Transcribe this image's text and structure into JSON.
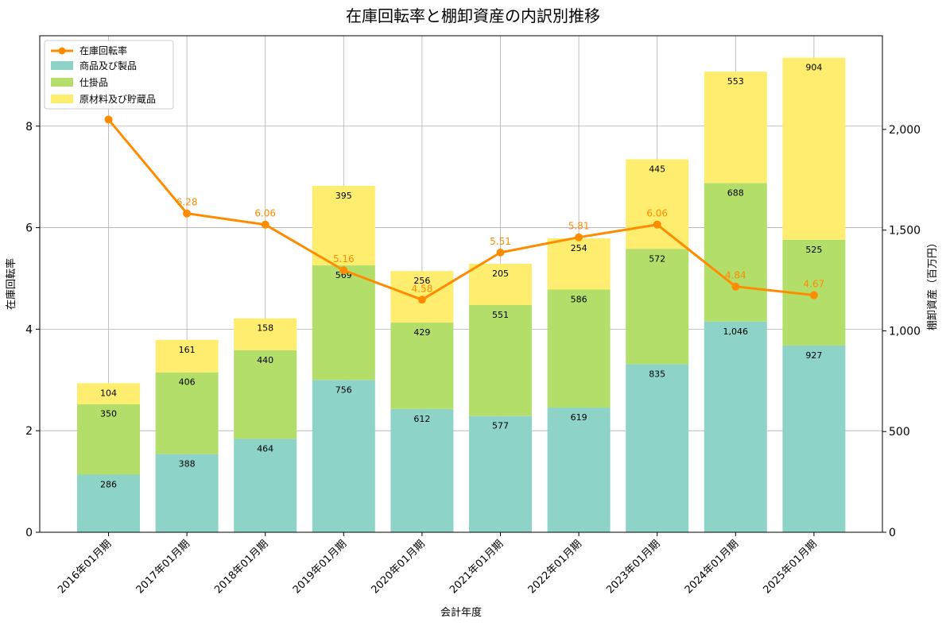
{
  "chart_data": {
    "type": "bar+line",
    "title": "在庫回転率と棚卸資産の内訳別推移",
    "xlabel": "会計年度",
    "ylabel_left": "在庫回転率",
    "ylabel_right": "棚卸資産（百万円）",
    "categories": [
      "2016年01月期",
      "2017年01月期",
      "2018年01月期",
      "2019年01月期",
      "2020年01月期",
      "2021年01月期",
      "2022年01月期",
      "2023年01月期",
      "2024年01月期",
      "2025年01月期"
    ],
    "bar_series": [
      {
        "name": "商品及び製品",
        "color": "#8dd3c7",
        "values": [
          286,
          388,
          464,
          756,
          612,
          577,
          619,
          835,
          1046,
          927
        ]
      },
      {
        "name": "仕掛品",
        "color": "#b3de69",
        "values": [
          350,
          406,
          440,
          569,
          429,
          551,
          586,
          572,
          688,
          525
        ]
      },
      {
        "name": "原材料及び貯蔵品",
        "color": "#ffed6f",
        "values": [
          104,
          161,
          158,
          395,
          256,
          205,
          254,
          445,
          553,
          904
        ]
      }
    ],
    "line_series": {
      "name": "在庫回転率",
      "color": "#ff8c00",
      "values": [
        8.13,
        6.28,
        6.06,
        5.16,
        4.58,
        5.51,
        5.81,
        6.06,
        4.84,
        4.67
      ]
    },
    "bar_labels": [
      [
        "286",
        "388",
        "464",
        "756",
        "612",
        "577",
        "619",
        "835",
        "1,046",
        "927"
      ],
      [
        "350",
        "406",
        "440",
        "569",
        "429",
        "551",
        "586",
        "572",
        "688",
        "525"
      ],
      [
        "104",
        "161",
        "158",
        "395",
        "256",
        "205",
        "254",
        "445",
        "553",
        "904"
      ]
    ],
    "line_labels": [
      "",
      "6.28",
      "6.06",
      "5.16",
      "4.58",
      "5.51",
      "5.81",
      "6.06",
      "4.84",
      "4.67"
    ],
    "ylim_left": [
      0,
      9.78
    ],
    "ylim_right": [
      0,
      2465
    ],
    "yticks_left": [
      "0",
      "2",
      "4",
      "6",
      "8"
    ],
    "yticks_left_values": [
      0,
      2,
      4,
      6,
      8
    ],
    "yticks_right": [
      "0",
      "500",
      "1,000",
      "1,500",
      "2,000"
    ],
    "yticks_right_values": [
      0,
      500,
      1000,
      1500,
      2000
    ],
    "grid": true,
    "legend_position": "top-left"
  }
}
